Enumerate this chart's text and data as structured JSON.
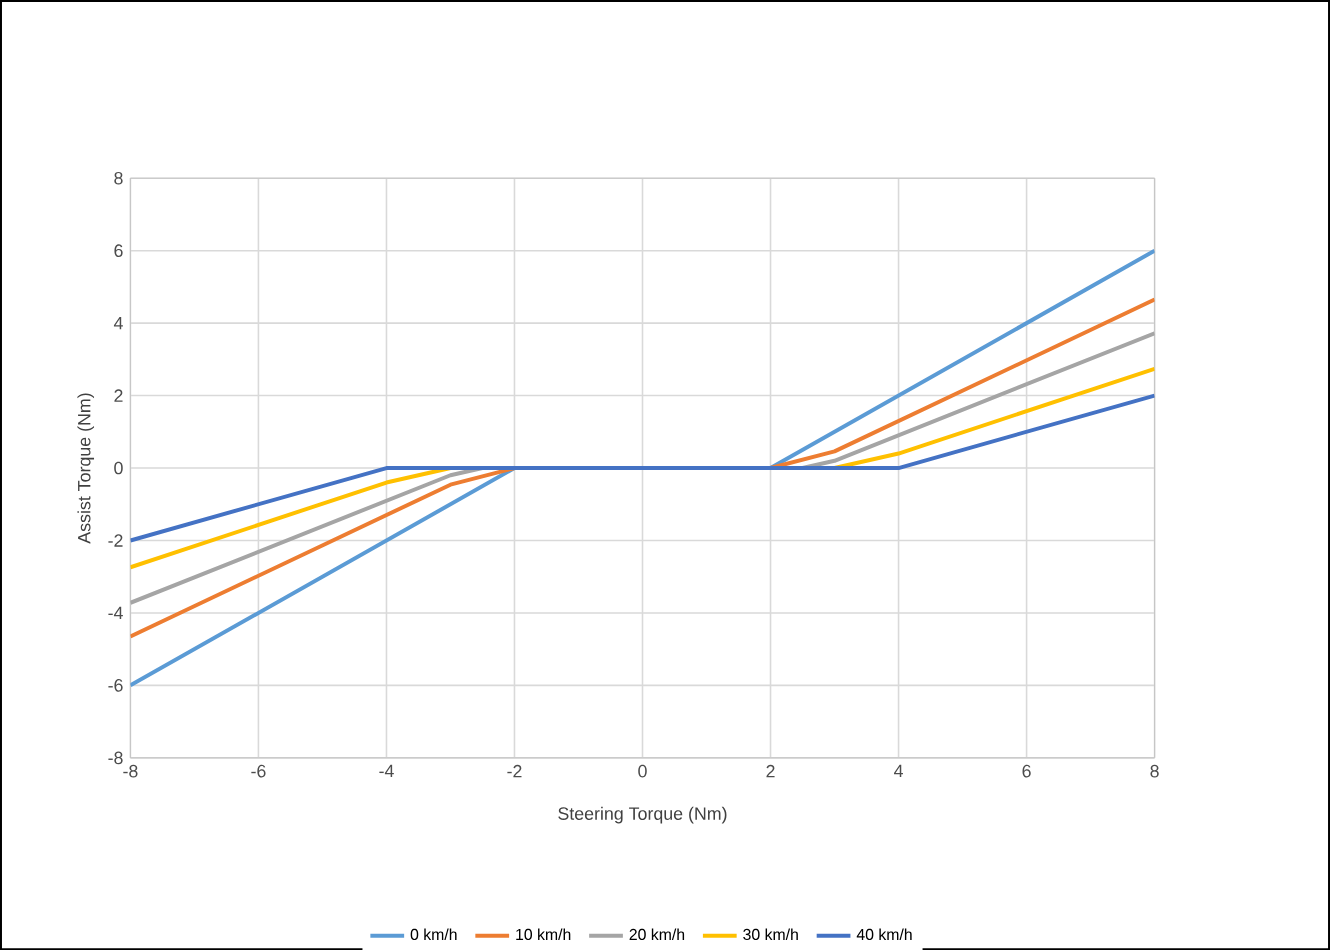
{
  "chart_data": {
    "type": "line",
    "xlabel": "Steering Torque (Nm)",
    "ylabel": "Assist Torque (Nm)",
    "xlim": [
      -8,
      8
    ],
    "ylim": [
      -8,
      8
    ],
    "xticks": [
      -8,
      -6,
      -4,
      -2,
      0,
      2,
      4,
      6,
      8
    ],
    "yticks": [
      -8,
      -6,
      -4,
      -2,
      0,
      2,
      4,
      6,
      8
    ],
    "grid": true,
    "legend": "bottom",
    "marker": "none",
    "line_style": "solid",
    "series": [
      {
        "name": "0 km/h",
        "color": "#5b9bd5",
        "x": [
          -8,
          -2,
          2,
          8
        ],
        "values": [
          -6,
          0,
          0,
          6
        ]
      },
      {
        "name": "10 km/h",
        "color": "#ed7d31",
        "x": [
          -8,
          -3,
          -2,
          2,
          3,
          8
        ],
        "values": [
          -4.65,
          -0.46,
          0,
          0,
          0.46,
          4.65
        ]
      },
      {
        "name": "20 km/h",
        "color": "#a5a5a5",
        "x": [
          -8,
          -3,
          -2.5,
          2.5,
          3,
          8
        ],
        "values": [
          -3.72,
          -0.2,
          0,
          0,
          0.2,
          3.72
        ]
      },
      {
        "name": "30 km/h",
        "color": "#ffc000",
        "x": [
          -8,
          -4,
          -3,
          3,
          4,
          8
        ],
        "values": [
          -2.74,
          -0.4,
          0,
          0,
          0.4,
          2.74
        ]
      },
      {
        "name": "40 km/h",
        "color": "#4472c4",
        "x": [
          -8,
          -4,
          4,
          8
        ],
        "values": [
          -2,
          0,
          0,
          2
        ]
      }
    ]
  }
}
